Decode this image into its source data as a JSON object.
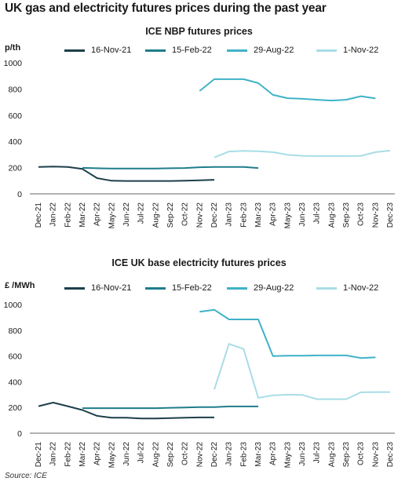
{
  "title": "UK gas and electricity futures prices during the past year",
  "source": "Source: ICE",
  "colors": {
    "16-Nov-21": "#1d3f4a",
    "15-Feb-22": "#1f7d8c",
    "29-Aug-22": "#3fb2c8",
    "1-Nov-22": "#a8dde6"
  },
  "chart_data": [
    {
      "type": "line",
      "title": "ICE NBP futures prices",
      "ylabel": "p/th",
      "xlabel": "",
      "ylim": [
        0,
        1000
      ],
      "yticks": [
        0,
        200,
        400,
        600,
        800,
        1000
      ],
      "categories": [
        "Dec-21",
        "Jan-22",
        "Feb-22",
        "Mar-22",
        "Apr-22",
        "May-22",
        "Jun-22",
        "Jul-22",
        "Aug-22",
        "Sep-22",
        "Oct-22",
        "Nov-22",
        "Dec-22",
        "Jan-23",
        "Feb-23",
        "Mar-23",
        "Apr-23",
        "May-23",
        "Jun-23",
        "Jul-23",
        "Aug-23",
        "Sep-23",
        "Oct-23",
        "Nov-23",
        "Dec-23"
      ],
      "legend_position": "top",
      "grid": false,
      "series": [
        {
          "name": "16-Nov-21",
          "values": [
            205,
            208,
            205,
            190,
            120,
            100,
            98,
            98,
            98,
            98,
            100,
            103,
            107,
            null,
            null,
            null,
            null,
            null,
            null,
            null,
            null,
            null,
            null,
            null,
            null
          ]
        },
        {
          "name": "15-Feb-22",
          "values": [
            null,
            null,
            null,
            198,
            195,
            193,
            193,
            193,
            193,
            195,
            197,
            203,
            205,
            205,
            205,
            197,
            null,
            null,
            null,
            null,
            null,
            null,
            null,
            null,
            null
          ]
        },
        {
          "name": "29-Aug-22",
          "values": [
            null,
            null,
            null,
            null,
            null,
            null,
            null,
            null,
            null,
            null,
            null,
            785,
            875,
            875,
            875,
            845,
            755,
            730,
            725,
            718,
            712,
            718,
            745,
            728,
            null
          ]
        },
        {
          "name": "1-Nov-22",
          "values": [
            null,
            null,
            null,
            null,
            null,
            null,
            null,
            null,
            null,
            null,
            null,
            null,
            278,
            323,
            328,
            325,
            318,
            298,
            290,
            288,
            288,
            288,
            290,
            318,
            330
          ]
        }
      ]
    },
    {
      "type": "line",
      "title": "ICE UK base electricity futures prices",
      "ylabel": "£ /MWh",
      "xlabel": "",
      "ylim": [
        0,
        1050
      ],
      "yticks": [
        0,
        200,
        400,
        600,
        800,
        1000
      ],
      "categories": [
        "Dec-21",
        "Jan-22",
        "Feb-22",
        "Mar-22",
        "Apr-22",
        "May-22",
        "Jun-22",
        "Jul-22",
        "Aug-22",
        "Sep-22",
        "Oct-22",
        "Nov-22",
        "Dec-22",
        "Jan-23",
        "Feb-23",
        "Mar-23",
        "Apr-23",
        "May-23",
        "Jun-23",
        "Jul-23",
        "Aug-23",
        "Sep-23",
        "Oct-23",
        "Nov-23",
        "Dec-23"
      ],
      "legend_position": "top",
      "grid": false,
      "series": [
        {
          "name": "16-Nov-21",
          "values": [
            210,
            238,
            210,
            180,
            135,
            120,
            120,
            115,
            115,
            118,
            120,
            123,
            123,
            null,
            null,
            null,
            null,
            null,
            null,
            null,
            null,
            null,
            null,
            null,
            null
          ]
        },
        {
          "name": "15-Feb-22",
          "values": [
            null,
            null,
            null,
            195,
            195,
            195,
            195,
            195,
            195,
            198,
            200,
            203,
            203,
            208,
            208,
            208,
            null,
            null,
            null,
            null,
            null,
            null,
            null,
            null,
            null
          ]
        },
        {
          "name": "29-Aug-22",
          "values": [
            null,
            null,
            null,
            null,
            null,
            null,
            null,
            null,
            null,
            null,
            null,
            945,
            960,
            885,
            885,
            885,
            600,
            603,
            603,
            605,
            605,
            605,
            585,
            590,
            null
          ]
        },
        {
          "name": "1-Nov-22",
          "values": [
            null,
            null,
            null,
            null,
            null,
            null,
            null,
            null,
            null,
            null,
            null,
            null,
            340,
            695,
            655,
            275,
            295,
            300,
            298,
            265,
            265,
            265,
            318,
            320,
            320
          ]
        }
      ]
    }
  ]
}
